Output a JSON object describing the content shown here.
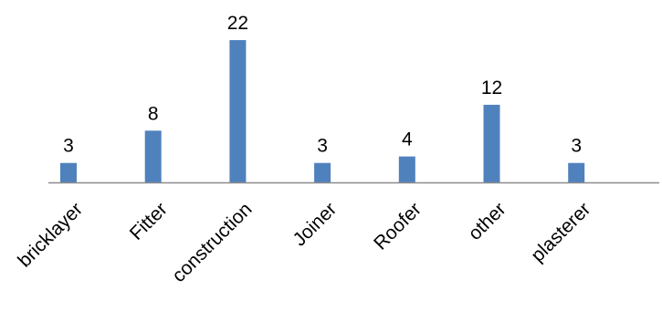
{
  "chart_data": {
    "type": "bar",
    "categories": [
      "bricklayer",
      "Fitter",
      "construction",
      "Joiner",
      "Roofer",
      "other",
      "plasterer"
    ],
    "values": [
      3,
      8,
      22,
      3,
      4,
      12,
      3
    ],
    "title": "",
    "xlabel": "",
    "ylabel": "",
    "ylim": [
      0,
      22
    ],
    "grid": false,
    "legend": "none",
    "data_labels": true,
    "colors": {
      "bar": "#4f81bd",
      "axis": "#8c8c8c",
      "text": "#000000"
    }
  }
}
